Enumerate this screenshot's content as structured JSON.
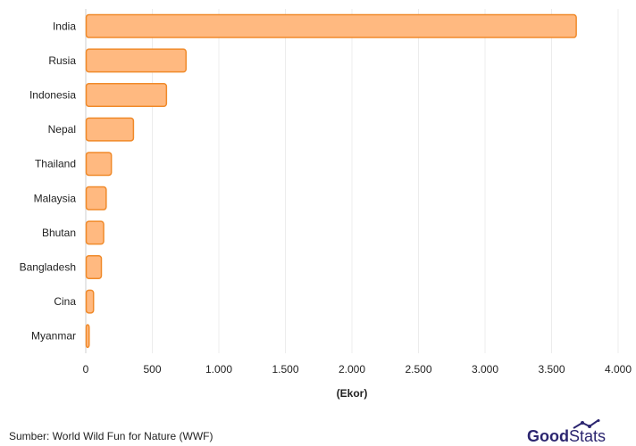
{
  "chart_data": {
    "type": "bar",
    "orientation": "horizontal",
    "categories": [
      "India",
      "Rusia",
      "Indonesia",
      "Nepal",
      "Thailand",
      "Malaysia",
      "Bhutan",
      "Bangladesh",
      "Cina",
      "Myanmar"
    ],
    "values": [
      3682,
      750,
      603,
      355,
      189,
      150,
      131,
      114,
      55,
      22
    ],
    "x_ticks": [
      0,
      500,
      1000,
      1500,
      2000,
      2500,
      3000,
      3500,
      4000
    ],
    "x_tick_labels": [
      "0",
      "500",
      "1.000",
      "1.500",
      "2.000",
      "2.500",
      "3.000",
      "3.500",
      "4.000"
    ],
    "xlim": [
      0,
      4000
    ],
    "xlabel": "(Ekor)",
    "grid": "vertical",
    "colors": {
      "bar_fill": "#ffb980",
      "bar_stroke": "#f08a2a",
      "grid": "#ececec",
      "axis": "#cfcfcf"
    }
  },
  "footer": {
    "source": "Sumber: World Wild Fun for Nature (WWF)",
    "logo_good": "Good",
    "logo_stats": "Stats"
  },
  "logo_colors": {
    "good": "#2c2670",
    "stats": "#2c2670"
  }
}
